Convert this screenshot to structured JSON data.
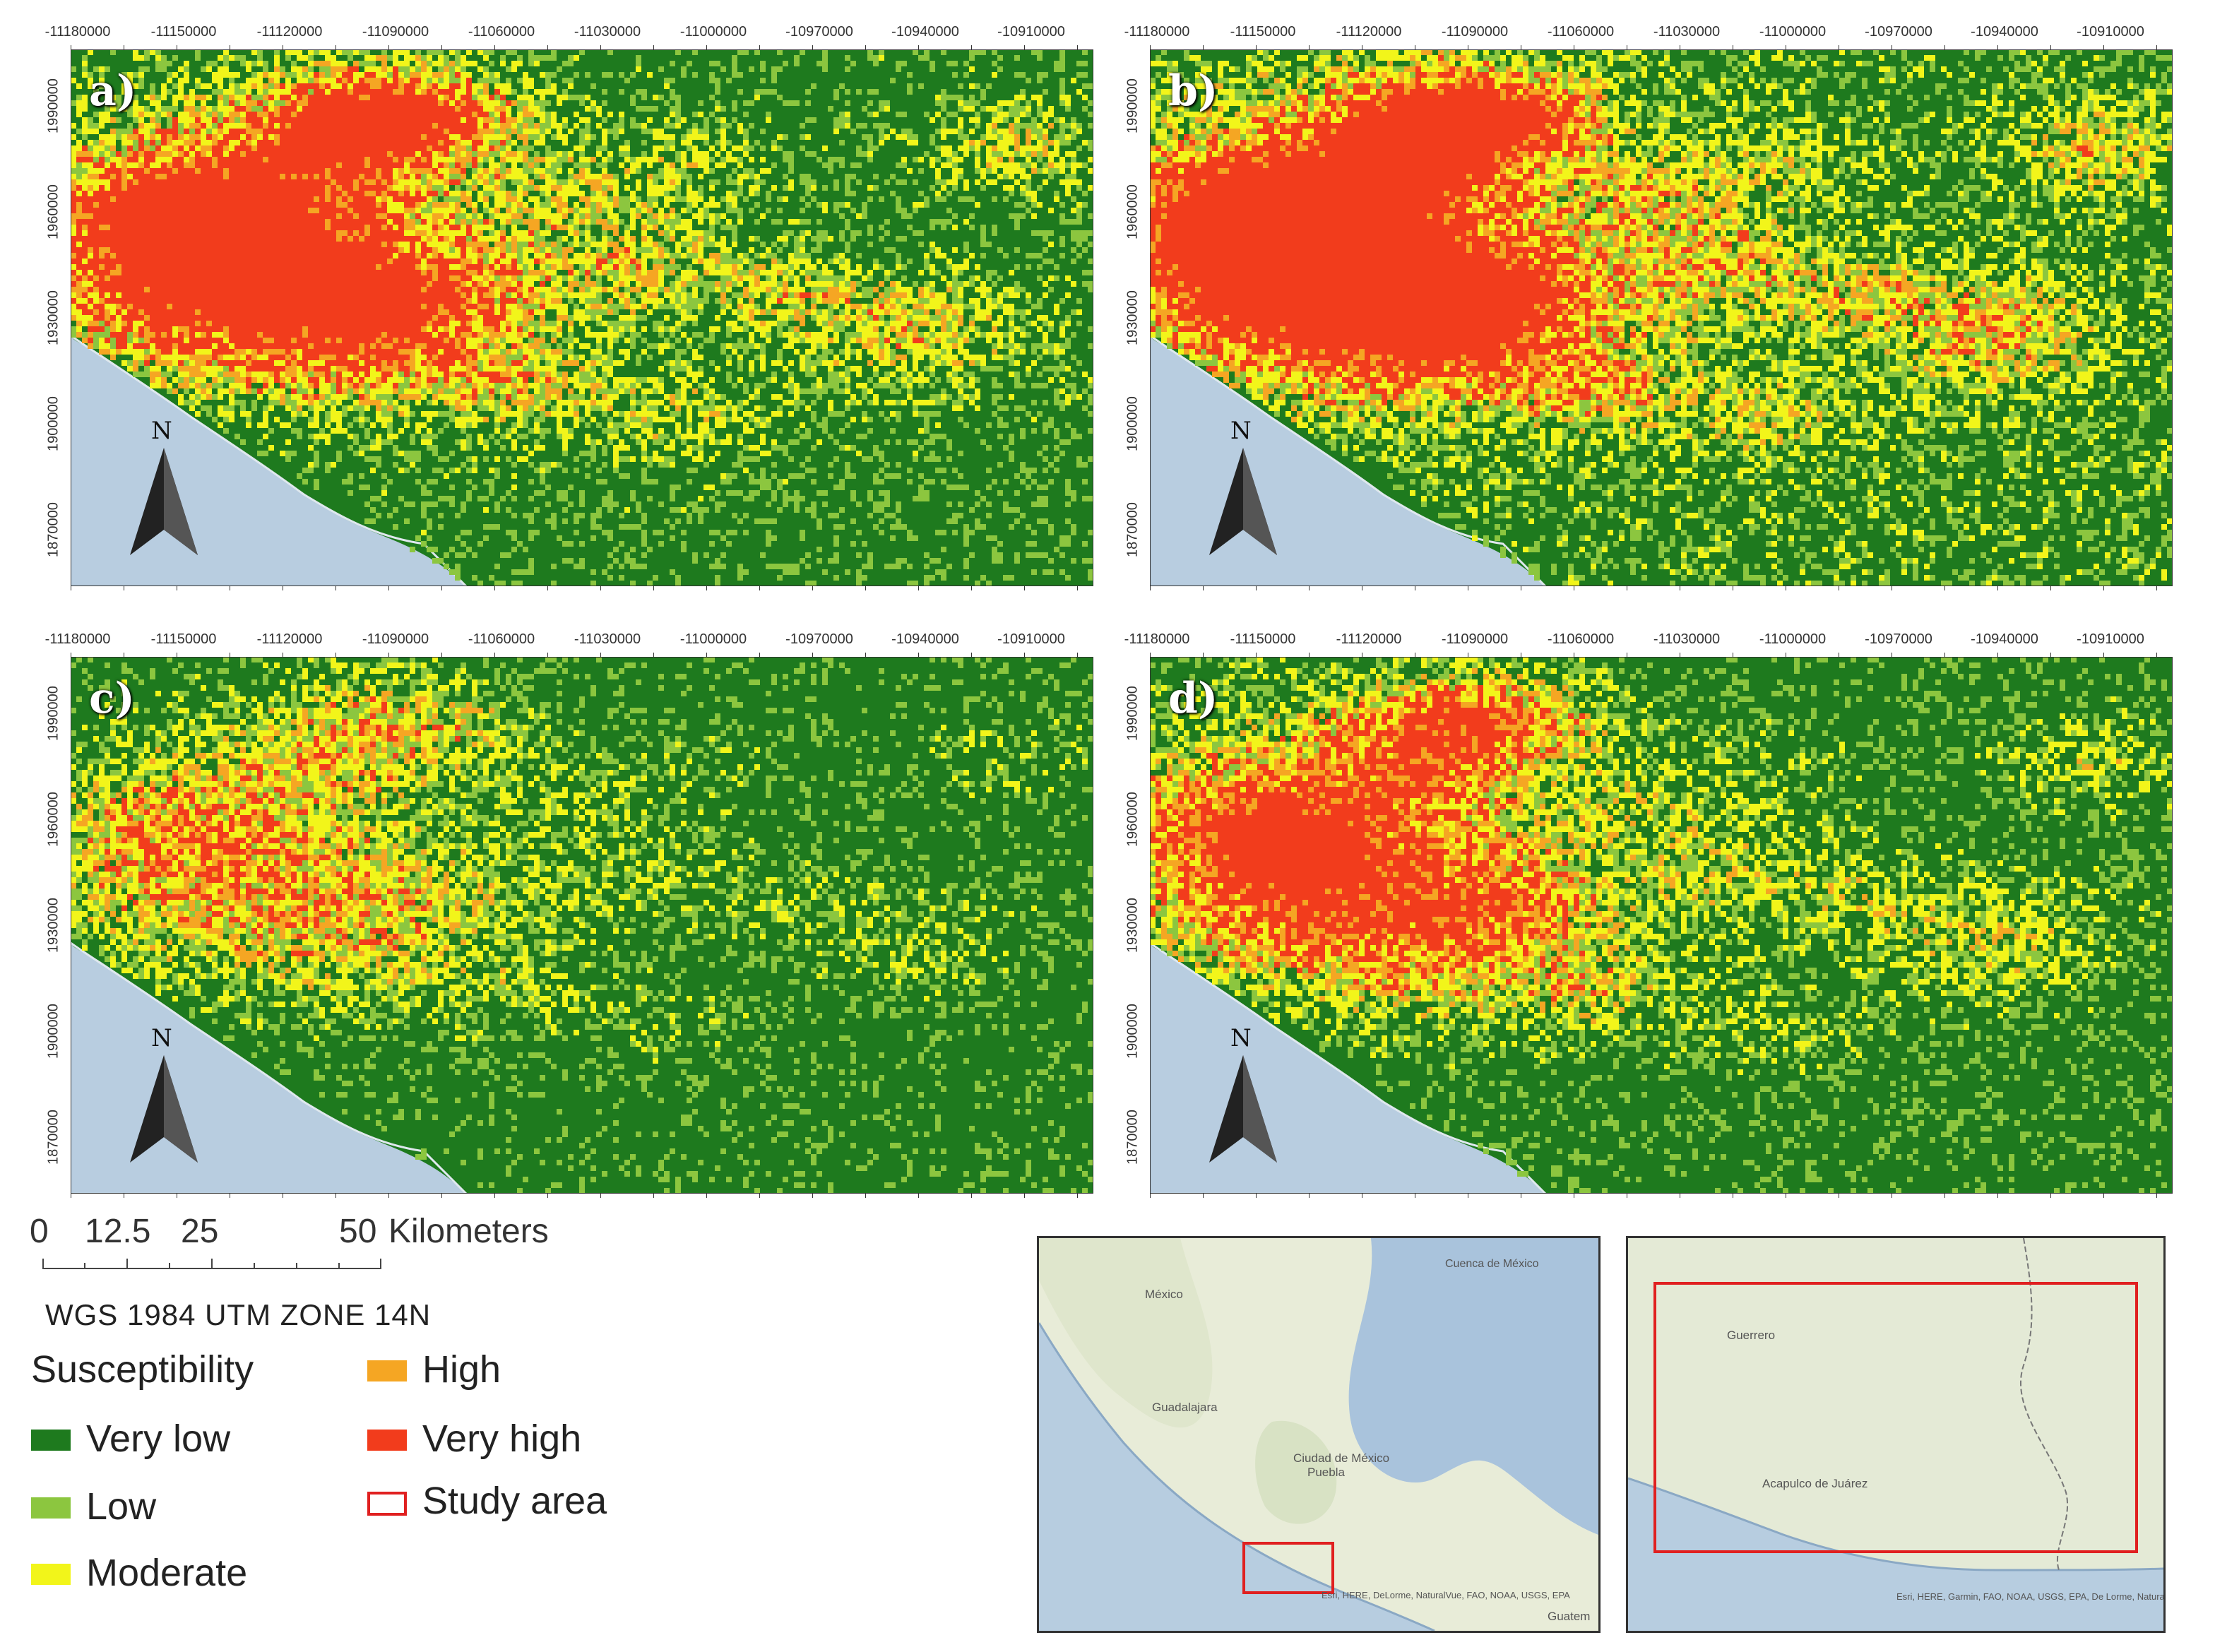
{
  "panels": [
    {
      "label": "a)",
      "noise": 0.1,
      "hot_intensity": 1.0
    },
    {
      "label": "b)",
      "noise": 0.18,
      "hot_intensity": 1.1
    },
    {
      "label": "c)",
      "noise": 0.02,
      "hot_intensity": 0.55
    },
    {
      "label": "d)",
      "noise": 0.06,
      "hot_intensity": 0.85
    }
  ],
  "x_ticks": [
    "-11180000",
    "-11150000",
    "-11120000",
    "-11090000",
    "-11060000",
    "-11030000",
    "-11000000",
    "-10970000",
    "-10940000",
    "-10910000"
  ],
  "y_ticks": [
    "1990000",
    "1960000",
    "1930000",
    "1900000",
    "1870000"
  ],
  "north_label": "N",
  "scale": {
    "labels": [
      "0",
      "12.5",
      "25",
      "50"
    ],
    "unit": "Kilometers"
  },
  "crs": "WGS 1984 UTM ZONE 14N",
  "legend": {
    "title": "Susceptibility",
    "items": [
      {
        "label": "Very low",
        "color": "#1e7a1e"
      },
      {
        "label": "Low",
        "color": "#8cc63f"
      },
      {
        "label": "Moderate",
        "color": "#f2f51a"
      },
      {
        "label": "High",
        "color": "#f5a623"
      },
      {
        "label": "Very high",
        "color": "#f23c1c"
      },
      {
        "label": "Study area",
        "color": "#e02020",
        "outline": true
      }
    ]
  },
  "inset1": {
    "labels": [
      "Cuenca de México",
      "México",
      "Guadalajara",
      "Ciudad de México",
      "Puebla",
      "Guatem"
    ],
    "credit": "Esri, HERE, DeLorme, NaturalVue, FAO, NOAA, USGS, EPA"
  },
  "inset2": {
    "labels": [
      "Guerrero",
      "Acapulco de Juárez"
    ],
    "credit": "Esri, HERE, Garmin, FAO, NOAA, USGS, EPA, De Lorme, NaturalVue"
  },
  "colors": {
    "very_low": "#1e7a1e",
    "low": "#8cc63f",
    "moderate": "#f2f51a",
    "high": "#f5a623",
    "very_high": "#f23c1c",
    "ocean": "#b8cde0",
    "study": "#e02020"
  }
}
